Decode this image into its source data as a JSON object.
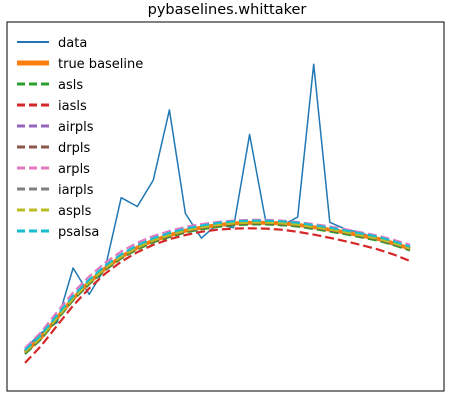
{
  "chart_data": {
    "type": "line",
    "title": "pybaselines.whittaker",
    "xlabel": "",
    "ylabel": "",
    "axis_ticks": "none",
    "grid": false,
    "legend_position": "top-left",
    "xlim": [
      0,
      1000
    ],
    "ylim": [
      -0.5,
      10.0
    ],
    "x": [
      0,
      40,
      80,
      120,
      160,
      200,
      240,
      280,
      320,
      360,
      400,
      440,
      480,
      520,
      560,
      600,
      640,
      680,
      720,
      760,
      800,
      840,
      880,
      920,
      960
    ],
    "series": [
      {
        "name": "data",
        "color": "#1f77b4",
        "style": "solid",
        "width": 1.5,
        "values": [
          0.7,
          1.15,
          1.45,
          3.0,
          2.25,
          3.0,
          5.0,
          4.75,
          5.5,
          7.5,
          4.55,
          3.85,
          4.25,
          4.15,
          6.8,
          4.35,
          4.2,
          4.45,
          8.8,
          4.3,
          4.1,
          4.0,
          3.8,
          3.65,
          3.55
        ]
      },
      {
        "name": "true baseline",
        "color": "#ff7f0e",
        "style": "solid",
        "width": 4,
        "values": [
          0.6,
          1.02,
          1.58,
          2.13,
          2.59,
          2.99,
          3.32,
          3.58,
          3.78,
          3.93,
          4.06,
          4.15,
          4.22,
          4.27,
          4.29,
          4.29,
          4.27,
          4.23,
          4.16,
          4.09,
          4.01,
          3.92,
          3.83,
          3.7,
          3.55
        ]
      },
      {
        "name": "asls",
        "color": "#2ca02c",
        "style": "dashed",
        "width": 2.2,
        "values": [
          0.55,
          0.97,
          1.53,
          2.08,
          2.54,
          2.94,
          3.27,
          3.53,
          3.73,
          3.88,
          4.01,
          4.1,
          4.17,
          4.22,
          4.24,
          4.24,
          4.22,
          4.18,
          4.11,
          4.04,
          3.96,
          3.87,
          3.78,
          3.65,
          3.5
        ]
      },
      {
        "name": "iasls",
        "color": "#d62728",
        "style": "dashed",
        "width": 2.2,
        "values": [
          0.3,
          0.78,
          1.36,
          1.93,
          2.42,
          2.84,
          3.18,
          3.45,
          3.66,
          3.82,
          3.94,
          4.03,
          4.09,
          4.12,
          4.13,
          4.12,
          4.09,
          4.03,
          3.95,
          3.86,
          3.76,
          3.65,
          3.53,
          3.38,
          3.2
        ]
      },
      {
        "name": "airpls",
        "color": "#9467bd",
        "style": "dashed",
        "width": 2.2,
        "values": [
          0.62,
          1.04,
          1.6,
          2.15,
          2.61,
          3.01,
          3.34,
          3.6,
          3.8,
          3.95,
          4.08,
          4.17,
          4.24,
          4.29,
          4.31,
          4.31,
          4.29,
          4.25,
          4.18,
          4.11,
          4.03,
          3.94,
          3.85,
          3.72,
          3.57
        ]
      },
      {
        "name": "drpls",
        "color": "#8c564b",
        "style": "dashed",
        "width": 2.2,
        "values": [
          0.58,
          1.0,
          1.56,
          2.11,
          2.57,
          2.97,
          3.3,
          3.56,
          3.76,
          3.91,
          4.04,
          4.13,
          4.2,
          4.25,
          4.27,
          4.27,
          4.25,
          4.21,
          4.14,
          4.07,
          3.99,
          3.9,
          3.81,
          3.68,
          3.53
        ]
      },
      {
        "name": "arpls",
        "color": "#e377c2",
        "style": "dashed",
        "width": 2.2,
        "values": [
          0.72,
          1.17,
          1.75,
          2.3,
          2.76,
          3.15,
          3.47,
          3.72,
          3.91,
          4.05,
          4.17,
          4.25,
          4.31,
          4.35,
          4.37,
          4.37,
          4.35,
          4.31,
          4.25,
          4.18,
          4.1,
          4.01,
          3.92,
          3.8,
          3.66
        ]
      },
      {
        "name": "iarpls",
        "color": "#7f7f7f",
        "style": "dashed",
        "width": 2.2,
        "values": [
          0.64,
          1.06,
          1.62,
          2.17,
          2.63,
          3.03,
          3.36,
          3.62,
          3.82,
          3.97,
          4.1,
          4.19,
          4.26,
          4.31,
          4.33,
          4.33,
          4.31,
          4.27,
          4.2,
          4.13,
          4.05,
          3.96,
          3.87,
          3.74,
          3.59
        ]
      },
      {
        "name": "aspls",
        "color": "#bcbd22",
        "style": "dashed",
        "width": 2.2,
        "values": [
          0.6,
          1.02,
          1.58,
          2.13,
          2.59,
          2.99,
          3.32,
          3.58,
          3.78,
          3.93,
          4.06,
          4.15,
          4.22,
          4.27,
          4.29,
          4.29,
          4.27,
          4.23,
          4.16,
          4.09,
          4.01,
          3.92,
          3.83,
          3.7,
          3.55
        ]
      },
      {
        "name": "psalsa",
        "color": "#17becf",
        "style": "dashed",
        "width": 2.2,
        "values": [
          0.66,
          1.1,
          1.66,
          2.21,
          2.67,
          3.07,
          3.39,
          3.65,
          3.85,
          4.0,
          4.12,
          4.21,
          4.28,
          4.33,
          4.35,
          4.35,
          4.33,
          4.29,
          4.22,
          4.15,
          4.07,
          3.98,
          3.89,
          3.76,
          3.61
        ]
      }
    ]
  }
}
